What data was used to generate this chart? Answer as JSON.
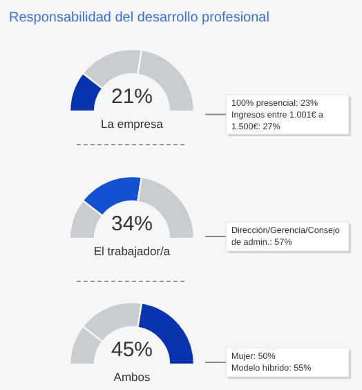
{
  "chart_data": [
    {
      "type": "donut",
      "title": "Responsabilidad del desarrollo profesional",
      "subtitle": "La empresa",
      "categories": [
        null,
        null,
        null
      ],
      "values": [
        21,
        34,
        45
      ],
      "colors": [
        "#0a33b0",
        "#c9cdd0",
        "#c9cdd0"
      ],
      "annotations": [
        "21%",
        "100% presencial: 23%\nIngresos entre 1.001€ a\n1.500€: 27%"
      ]
    },
    {
      "type": "donut",
      "subtitle": "El trabajador/a",
      "categories": [
        null,
        null,
        null
      ],
      "values": [
        21,
        34,
        45
      ],
      "colors": [
        "#c9cdd0",
        "#1450d2",
        "#c9cdd0"
      ],
      "annotations": [
        "34%",
        "Dirección/Gerencia/Consejo\nde admin.: 57%"
      ]
    },
    {
      "type": "donut",
      "subtitle": "Ambos",
      "categories": [
        null,
        null,
        null
      ],
      "values": [
        21,
        34,
        45
      ],
      "colors": [
        "#c9cdd0",
        "#c9cdd0",
        "#0a33b0"
      ],
      "annotations": [
        "45%",
        "Mujer: 50%\nModelo híbrido: 55%"
      ]
    }
  ]
}
